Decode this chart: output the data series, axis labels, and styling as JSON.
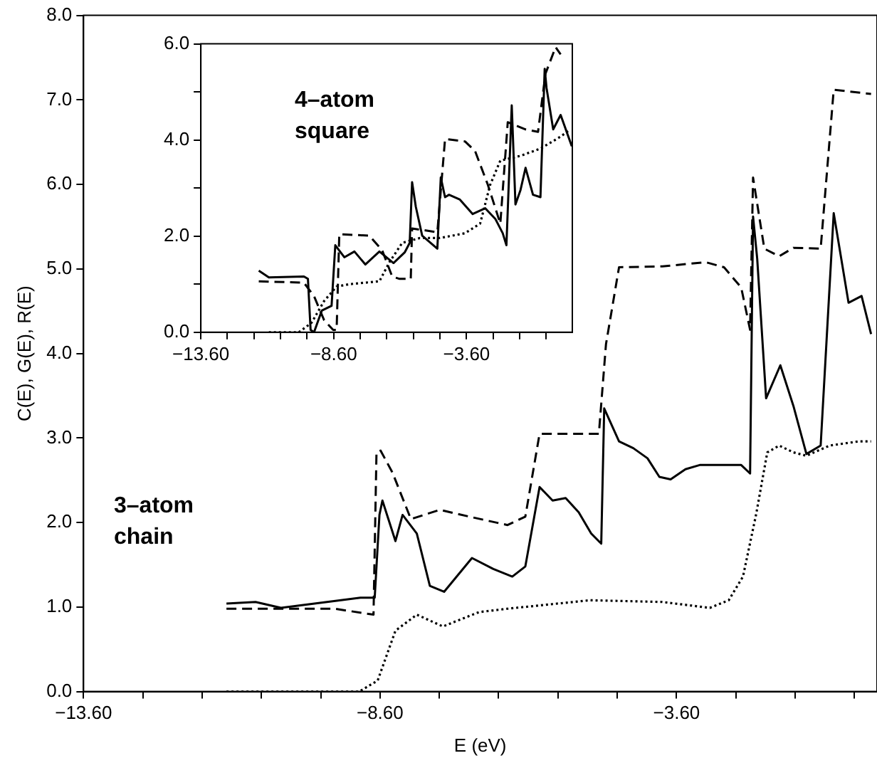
{
  "chart_data": [
    {
      "type": "line",
      "xlabel": "E (eV)",
      "ylabel": "C(E), G(E), R(E)",
      "annotations": [
        "3–atom chain"
      ],
      "xlim": [
        -13.6,
        -0.22
      ],
      "ylim": [
        0,
        8
      ],
      "xticks": [
        {
          "value": -13.6,
          "label": "−13.60"
        },
        {
          "value": -12.6,
          "label": null
        },
        {
          "value": -11.6,
          "label": null
        },
        {
          "value": -10.6,
          "label": null
        },
        {
          "value": -9.6,
          "label": null
        },
        {
          "value": -8.6,
          "label": "−8.60"
        },
        {
          "value": -7.6,
          "label": null
        },
        {
          "value": -6.6,
          "label": null
        },
        {
          "value": -5.6,
          "label": null
        },
        {
          "value": -4.6,
          "label": null
        },
        {
          "value": -3.6,
          "label": "−3.60"
        },
        {
          "value": -2.6,
          "label": null
        },
        {
          "value": -1.6,
          "label": null
        },
        {
          "value": -0.6,
          "label": null
        }
      ],
      "yticks": [
        {
          "value": 0,
          "label": "0.0"
        },
        {
          "value": 1,
          "label": "1.0"
        },
        {
          "value": 2,
          "label": "2.0"
        },
        {
          "value": 3,
          "label": "3.0"
        },
        {
          "value": 4,
          "label": "4.0"
        },
        {
          "value": 5,
          "label": "5.0"
        },
        {
          "value": 6,
          "label": "6.0"
        },
        {
          "value": 7,
          "label": "7.0"
        },
        {
          "value": 8,
          "label": "8.0"
        }
      ],
      "grid": false,
      "legend": false,
      "marker": "none",
      "series": [
        {
          "color": "#000000",
          "line_style": "solid",
          "x": [
            -11.19,
            -10.7,
            -10.27,
            -8.93,
            -8.69,
            -8.61,
            -8.56,
            -8.34,
            -8.22,
            -7.98,
            -7.76,
            -7.52,
            -7.05,
            -6.69,
            -6.37,
            -6.15,
            -5.91,
            -5.69,
            -5.47,
            -5.25,
            -5.04,
            -4.87,
            -4.82,
            -4.57,
            -4.33,
            -4.09,
            -3.89,
            -3.7,
            -3.45,
            -3.21,
            -2.51,
            -2.36,
            -2.31,
            -2.24,
            -2.09,
            -1.85,
            -1.63,
            -1.41,
            -1.17,
            -0.95,
            -0.7,
            -0.48,
            -0.32
          ],
          "values": [
            1.04,
            1.06,
            0.99,
            1.11,
            1.11,
            2.09,
            2.26,
            1.78,
            2.09,
            1.87,
            1.25,
            1.18,
            1.58,
            1.45,
            1.36,
            1.48,
            2.42,
            2.26,
            2.29,
            2.12,
            1.87,
            1.75,
            3.35,
            2.96,
            2.88,
            2.76,
            2.54,
            2.51,
            2.63,
            2.68,
            2.68,
            2.58,
            5.62,
            5.12,
            3.47,
            3.86,
            3.38,
            2.81,
            2.91,
            5.66,
            4.6,
            4.68,
            4.23
          ]
        },
        {
          "color": "#000000",
          "line_style": "dashed",
          "x": [
            -11.19,
            -9.37,
            -8.71,
            -8.66,
            -8.59,
            -8.39,
            -8.08,
            -7.59,
            -7.1,
            -6.45,
            -6.15,
            -5.91,
            -4.91,
            -4.79,
            -4.57,
            -3.84,
            -3.11,
            -2.8,
            -2.51,
            -2.36,
            -2.31,
            -2.12,
            -1.87,
            -1.63,
            -1.17,
            -0.95,
            -0.32
          ],
          "values": [
            0.98,
            0.98,
            0.91,
            2.83,
            2.85,
            2.59,
            2.04,
            2.15,
            2.07,
            1.97,
            2.07,
            3.05,
            3.05,
            4.11,
            5.02,
            5.03,
            5.08,
            5.02,
            4.78,
            4.28,
            6.08,
            5.24,
            5.15,
            5.25,
            5.24,
            7.12,
            7.07
          ]
        },
        {
          "color": "#000000",
          "line_style": "dotted",
          "x": [
            -11.19,
            -8.95,
            -8.64,
            -8.34,
            -7.98,
            -7.54,
            -6.93,
            -6.45,
            -5.06,
            -3.84,
            -3.04,
            -2.72,
            -2.48,
            -2.26,
            -2.07,
            -1.87,
            -1.63,
            -1.41,
            -1.02,
            -0.53,
            -0.32
          ],
          "values": [
            0,
            0,
            0.13,
            0.72,
            0.91,
            0.77,
            0.94,
            0.98,
            1.08,
            1.06,
            0.99,
            1.08,
            1.36,
            2.09,
            2.83,
            2.91,
            2.83,
            2.79,
            2.91,
            2.96,
            2.96
          ]
        }
      ]
    },
    {
      "type": "line",
      "annotations": [
        "4–atom square"
      ],
      "xlim": [
        -13.6,
        0.38
      ],
      "ylim": [
        0,
        6
      ],
      "xticks": [
        {
          "value": -13.6,
          "label": "−13.60"
        },
        {
          "value": -12.6,
          "label": null
        },
        {
          "value": -11.6,
          "label": null
        },
        {
          "value": -10.6,
          "label": null
        },
        {
          "value": -9.6,
          "label": null
        },
        {
          "value": -8.6,
          "label": "−8.60"
        },
        {
          "value": -7.6,
          "label": null
        },
        {
          "value": -6.6,
          "label": null
        },
        {
          "value": -5.6,
          "label": null
        },
        {
          "value": -4.6,
          "label": null
        },
        {
          "value": -3.6,
          "label": "−3.60"
        },
        {
          "value": -2.6,
          "label": null
        },
        {
          "value": -1.6,
          "label": null
        },
        {
          "value": -0.6,
          "label": null
        }
      ],
      "yticks": [
        {
          "value": 0,
          "label": "0.0"
        },
        {
          "value": 1,
          "label": null
        },
        {
          "value": 2,
          "label": "2.0"
        },
        {
          "value": 3,
          "label": null
        },
        {
          "value": 4,
          "label": "4.0"
        },
        {
          "value": 5,
          "label": null
        },
        {
          "value": 6,
          "label": "6.0"
        }
      ],
      "grid": false,
      "legend": false,
      "marker": "none",
      "series": [
        {
          "color": "#000000",
          "line_style": "solid",
          "x": [
            -11.42,
            -11.04,
            -9.72,
            -9.57,
            -9.47,
            -9.34,
            -9.05,
            -8.68,
            -8.54,
            -8.2,
            -7.82,
            -7.41,
            -6.88,
            -6.35,
            -5.93,
            -5.74,
            -5.65,
            -5.51,
            -5.27,
            -4.7,
            -4.57,
            -4.41,
            -4.26,
            -3.85,
            -3.37,
            -2.9,
            -2.52,
            -2.24,
            -2.1,
            -1.9,
            -1.76,
            -1.57,
            -1.38,
            -1.1,
            -0.82,
            -0.66,
            -0.59,
            -0.34,
            -0.06,
            0.36
          ],
          "values": [
            1.28,
            1.14,
            1.16,
            1.11,
            0.05,
            0,
            0.45,
            0.55,
            1.81,
            1.56,
            1.68,
            1.41,
            1.68,
            1.44,
            1.66,
            1.86,
            3.12,
            2.61,
            2.01,
            1.74,
            3.22,
            2.81,
            2.86,
            2.76,
            2.46,
            2.58,
            2.36,
            2.06,
            1.81,
            4.72,
            2.66,
            2.96,
            3.42,
            2.86,
            2.81,
            5.48,
            5.08,
            4.22,
            4.52,
            3.87
          ]
        },
        {
          "color": "#000000",
          "line_style": "dashed",
          "x": [
            -11.42,
            -9.72,
            -9.34,
            -8.96,
            -8.62,
            -8.49,
            -8.39,
            -7.26,
            -6.78,
            -6.4,
            -6.12,
            -5.7,
            -5.65,
            -4.7,
            -4.41,
            -3.66,
            -3.28,
            -2.8,
            -2.33,
            -2.05,
            -1.38,
            -0.91,
            -0.63,
            -0.25,
            -0.06
          ],
          "values": [
            1.06,
            1.03,
            0.75,
            0.25,
            0.05,
            0.05,
            2.04,
            2.01,
            1.71,
            1.16,
            1.11,
            1.11,
            2.16,
            2.08,
            4.02,
            3.97,
            3.77,
            3.07,
            2.26,
            4.37,
            4.22,
            4.17,
            5.38,
            5.93,
            5.78
          ]
        },
        {
          "color": "#000000",
          "line_style": "dotted",
          "x": [
            -11.04,
            -9.91,
            -9.43,
            -8.96,
            -8.49,
            -8.01,
            -6.88,
            -6.5,
            -6.02,
            -5.36,
            -4.6,
            -3.66,
            -3.09,
            -2.71,
            -2.33,
            -1.57,
            -0.82,
            -0.06,
            0.23
          ],
          "values": [
            0,
            0,
            0.2,
            0.65,
            0.95,
            1,
            1.06,
            1.46,
            1.86,
            1.96,
            1.96,
            2.06,
            2.26,
            3.07,
            3.57,
            3.67,
            3.82,
            4.07,
            4.19
          ]
        }
      ]
    }
  ]
}
